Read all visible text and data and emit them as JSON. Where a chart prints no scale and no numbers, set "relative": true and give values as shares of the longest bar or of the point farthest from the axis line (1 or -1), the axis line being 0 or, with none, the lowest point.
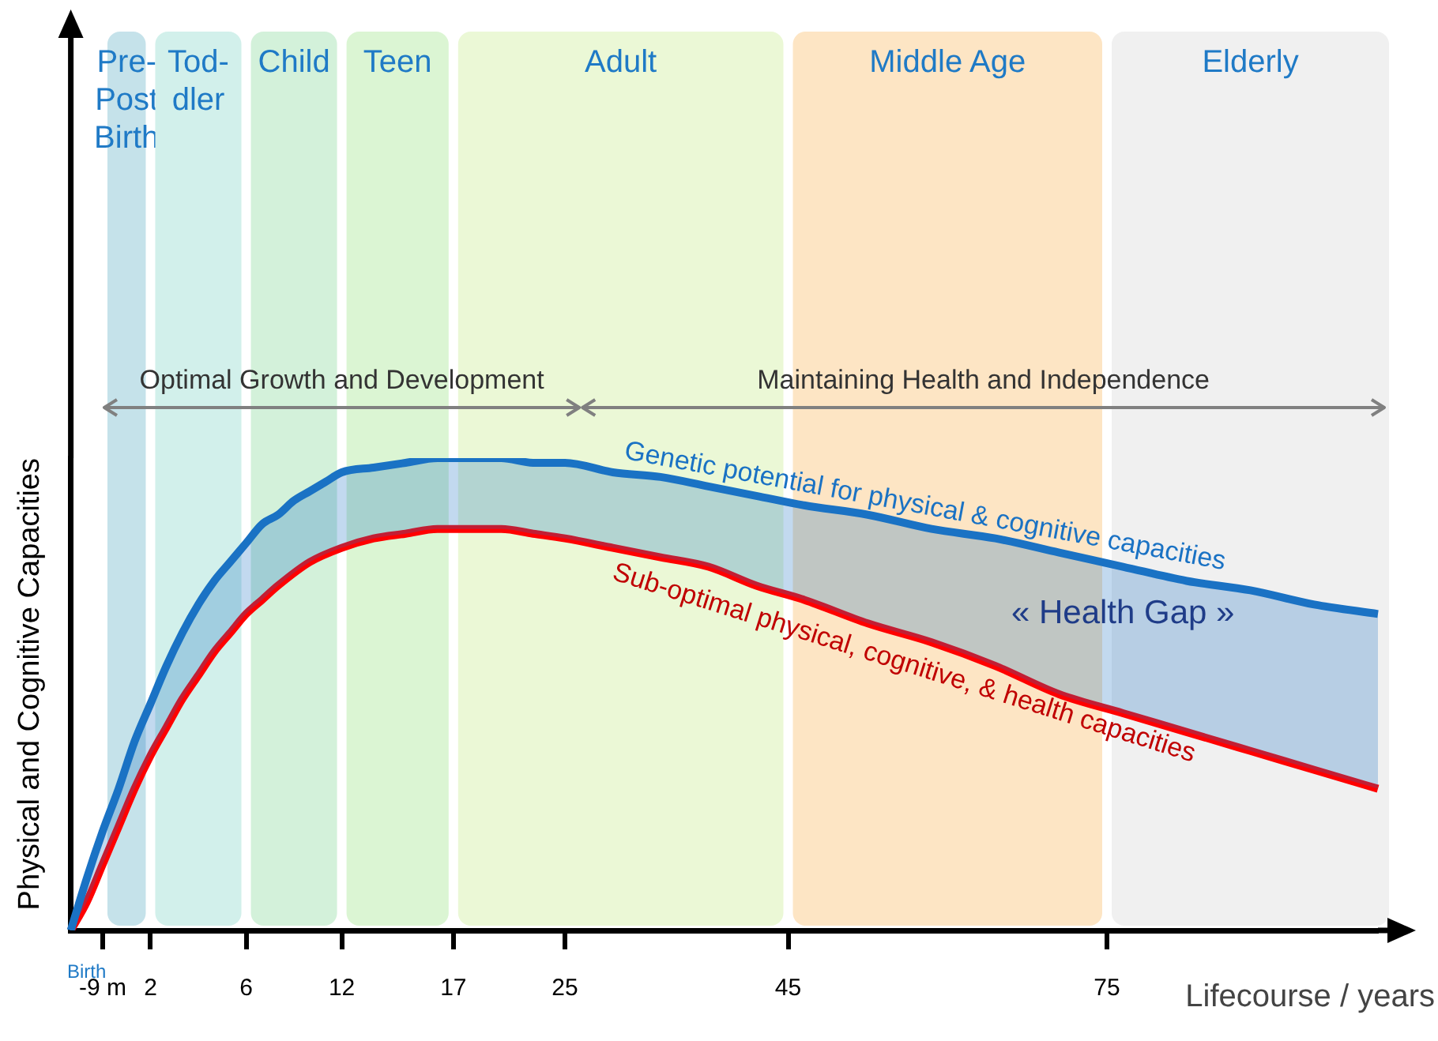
{
  "chart_data": {
    "type": "line",
    "relative": true,
    "ylabel": "Physical and Cognitive Capacities",
    "xlabel": "Lifecourse / years",
    "categories": [
      null,
      null,
      "-9 m",
      null,
      null,
      "2",
      null,
      null,
      null,
      null,
      null,
      "6",
      null,
      null,
      null,
      null,
      null,
      "12",
      null,
      null,
      null,
      null,
      null,
      null,
      "17",
      null,
      null,
      null,
      null,
      null,
      null,
      "25",
      null,
      null,
      null,
      null,
      null,
      null,
      null,
      null,
      null,
      null,
      null,
      null,
      null,
      "45",
      null,
      null,
      null,
      null,
      null,
      null,
      null,
      null,
      null,
      null,
      null,
      null,
      null,
      null,
      null,
      null,
      null,
      null,
      null,
      "75",
      null,
      null,
      null,
      null,
      null,
      null,
      null,
      null,
      null,
      null,
      null,
      null,
      null,
      null,
      null,
      null,
      null
    ],
    "series": [
      {
        "name": "Genetic potential for physical & cognitive capacities",
        "color": "#1a72c4",
        "values": [
          0,
          0.11,
          0.21,
          0.3,
          0.4,
          0.48,
          0.56,
          0.63,
          0.69,
          0.74,
          0.78,
          0.82,
          0.86,
          0.88,
          0.91,
          0.93,
          0.95,
          0.97,
          null,
          0.98,
          null,
          0.99,
          null,
          1,
          null,
          1,
          null,
          1,
          null,
          0.99,
          null,
          0.99,
          null,
          null,
          0.97,
          null,
          null,
          0.96,
          null,
          null,
          0.94,
          null,
          null,
          0.92,
          null,
          null,
          0.9,
          null,
          null,
          null,
          0.88,
          null,
          null,
          null,
          0.85,
          null,
          null,
          null,
          0.83,
          null,
          null,
          null,
          0.8,
          null,
          null,
          null,
          0.77,
          null,
          null,
          null,
          0.74,
          null,
          null,
          null,
          0.72,
          null,
          null,
          null,
          0.69,
          null,
          null,
          null,
          0.67
        ]
      },
      {
        "name": "Sub-optimal physical, cognitive, & health capacities",
        "color": "#ff0000",
        "values": [
          0,
          0.06,
          0.14,
          0.22,
          0.3,
          0.37,
          0.43,
          0.49,
          0.54,
          0.59,
          0.63,
          0.67,
          0.7,
          0.73,
          null,
          0.78,
          null,
          0.81,
          null,
          0.83,
          null,
          0.84,
          null,
          0.85,
          null,
          0.85,
          null,
          0.85,
          null,
          0.84,
          null,
          0.83,
          null,
          null,
          0.81,
          null,
          null,
          0.79,
          null,
          null,
          0.77,
          null,
          null,
          0.73,
          null,
          null,
          0.7,
          null,
          null,
          null,
          0.65,
          null,
          null,
          null,
          0.61,
          null,
          null,
          null,
          0.56,
          null,
          null,
          null,
          0.5,
          null,
          null,
          null,
          0.46,
          null,
          null,
          null,
          0.42,
          null,
          null,
          null,
          0.38,
          null,
          null,
          null,
          0.34,
          null,
          null,
          null,
          0.3
        ]
      }
    ],
    "bands": [
      {
        "axis": "x",
        "from": "-9 m",
        "to": "2",
        "label": "Pre-\nPost\nBirth",
        "color": "#c5e2ea"
      },
      {
        "axis": "x",
        "from": "2",
        "to": "6",
        "label": "Tod-\ndler",
        "color": "#d2f0eb"
      },
      {
        "axis": "x",
        "from": "6",
        "to": "12",
        "label": "Child",
        "color": "#d3f1da"
      },
      {
        "axis": "x",
        "from": "12",
        "to": "17",
        "label": "Teen",
        "color": "#dbf5d3"
      },
      {
        "axis": "x",
        "from": "17",
        "to": "45",
        "label": "Adult",
        "color": "#ebf8d6"
      },
      {
        "axis": "x",
        "from": "45",
        "to": "75",
        "label": "Middle Age",
        "color": "#fde5c4"
      }
    ],
    "annotations": [
      "Optimal Growth and Development",
      "Maintaining Health and Independence",
      "« Health Gap »",
      "Birth",
      "Elderly"
    ],
    "legend": false,
    "grid": false
  }
}
